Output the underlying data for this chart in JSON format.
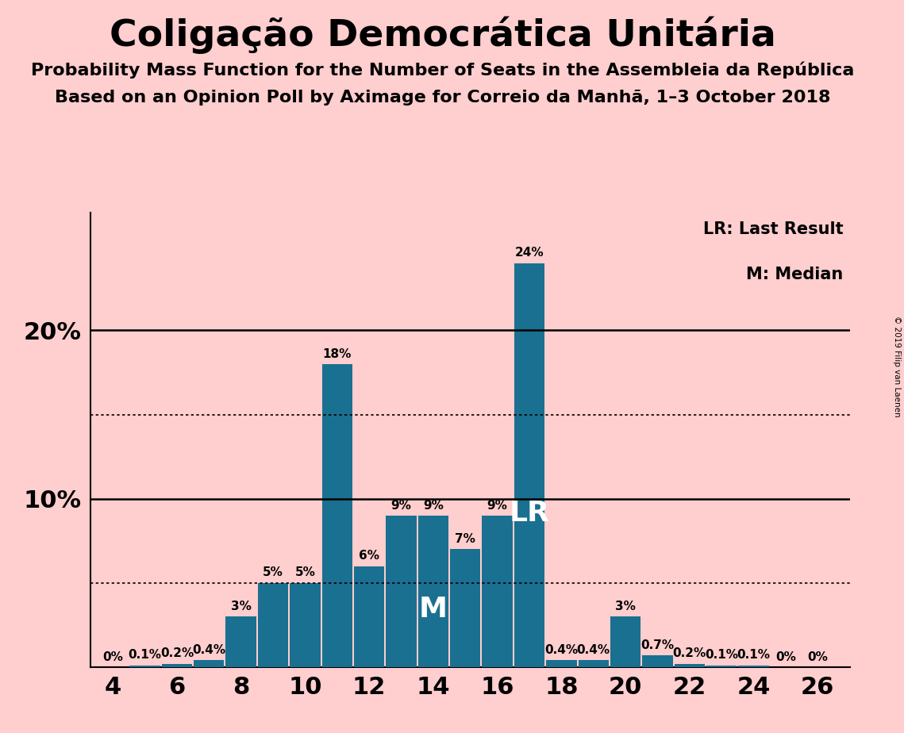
{
  "title": "Coligação Democrática Unitária",
  "subtitle1": "Probability Mass Function for the Number of Seats in the Assembleia da República",
  "subtitle2": "Based on an Opinion Poll by Aximage for Correio da Manhã, 1–3 October 2018",
  "copyright": "© 2019 Filip van Laenen",
  "legend_lr": "LR: Last Result",
  "legend_m": "M: Median",
  "seats": [
    4,
    5,
    6,
    7,
    8,
    9,
    10,
    11,
    12,
    13,
    14,
    15,
    16,
    17,
    18,
    19,
    20,
    21,
    22,
    23,
    24,
    25,
    26
  ],
  "probabilities": [
    0.0,
    0.1,
    0.2,
    0.4,
    3.0,
    5.0,
    5.0,
    18.0,
    6.0,
    9.0,
    9.0,
    7.0,
    9.0,
    24.0,
    0.4,
    0.4,
    3.0,
    0.7,
    0.2,
    0.1,
    0.1,
    0.0,
    0.0
  ],
  "bar_color": "#1a7090",
  "background_color": "#ffcece",
  "median_seat": 14,
  "lr_seat": 17,
  "lr_line_pct": 15.0,
  "median_line_pct": 5.0,
  "xlabel_ticks": [
    4,
    6,
    8,
    10,
    12,
    14,
    16,
    18,
    20,
    22,
    24,
    26
  ],
  "title_fontsize": 34,
  "subtitle_fontsize": 16,
  "bar_label_fontsize": 11,
  "axis_label_fontsize": 22
}
